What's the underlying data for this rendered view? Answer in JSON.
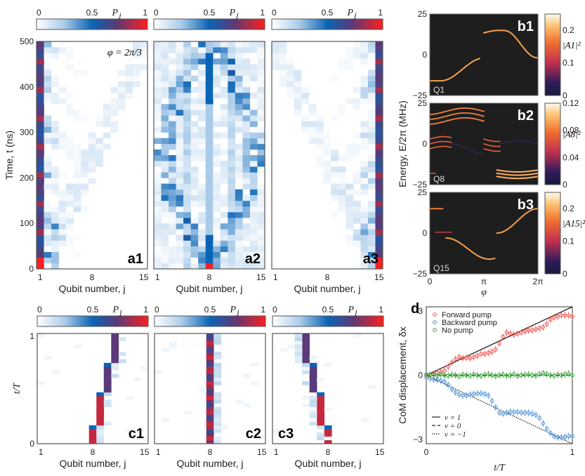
{
  "chart_data": [
    {
      "id": "a",
      "type": "heatmap",
      "colorbar": {
        "label": "P_j",
        "ticks": [
          "0",
          "0.5",
          "1"
        ],
        "range": [
          0,
          1
        ]
      },
      "ylabel": "Time, t (ns)",
      "xlabel": "Qubit number, j",
      "xticks": [
        "1",
        "8",
        "15"
      ],
      "yticks": [
        "0",
        "100",
        "200",
        "300",
        "400",
        "500"
      ],
      "ylim": [
        0,
        500
      ],
      "annotation": "φ = 2π/3",
      "panels": [
        {
          "label": "a1",
          "initial_qubit": 1,
          "description": "excitation stays localized at edge qubit 1"
        },
        {
          "label": "a2",
          "initial_qubit": 8,
          "description": "excitation spreads from center qubit 8 and refocuses"
        },
        {
          "label": "a3",
          "initial_qubit": 15,
          "description": "excitation stays localized at edge qubit 15"
        }
      ]
    },
    {
      "id": "b",
      "type": "heatmap",
      "xlabel": "φ",
      "xticks": [
        "0",
        "π",
        "2π"
      ],
      "ylabel": "Energy, E/2π (MHz)",
      "yticks": [
        "−25",
        "0",
        "25"
      ],
      "ylim": [
        -25,
        25
      ],
      "panels": [
        {
          "label": "b1",
          "qubit_label": "Q1",
          "colorbar_label": "|A1|²",
          "colorbar_ticks": [
            "0",
            "0.1",
            "0.2"
          ],
          "colorbar_max": 0.25
        },
        {
          "label": "b2",
          "qubit_label": "Q8",
          "colorbar_label": "|A8|²",
          "colorbar_ticks": [
            "0",
            "0.04",
            "0.08",
            "0.12"
          ],
          "colorbar_max": 0.12
        },
        {
          "label": "b3",
          "qubit_label": "Q15",
          "colorbar_label": "|A15|²",
          "colorbar_ticks": [
            "0",
            "0.1",
            "0.2"
          ],
          "colorbar_max": 0.25
        }
      ]
    },
    {
      "id": "c",
      "type": "heatmap",
      "colorbar": {
        "label": "P_j",
        "ticks": [
          "0",
          "0.5",
          "1"
        ],
        "range": [
          0,
          1
        ]
      },
      "ylabel": "t/T",
      "xlabel": "Qubit number, j",
      "xticks": [
        "1",
        "8",
        "15"
      ],
      "yticks": [
        "0",
        "1"
      ],
      "panels": [
        {
          "label": "c1",
          "path_qubits": [
            8,
            9,
            10,
            11
          ],
          "description": "forward pump: shifts right"
        },
        {
          "label": "c2",
          "path_qubits": [
            8
          ],
          "description": "no pump: stays at 8"
        },
        {
          "label": "c3",
          "path_qubits": [
            8,
            7,
            6,
            5
          ],
          "description": "backward pump: shifts left"
        }
      ]
    },
    {
      "id": "d",
      "type": "scatter",
      "label": "d",
      "xlabel": "t/T",
      "ylabel": "CoM displacement, δx",
      "xticks": [
        "0",
        "1"
      ],
      "yticks": [
        "−3",
        "0",
        "3"
      ],
      "xlim": [
        0,
        1
      ],
      "ylim": [
        -3.2,
        3.2
      ],
      "legend": [
        "Forward pump",
        "Backward pump",
        "No pump"
      ],
      "legend_lines": [
        "ν = 1",
        "ν = 0",
        "ν = −1"
      ],
      "legend_position": "top-left",
      "colors": {
        "forward": "#f0504a",
        "backward": "#4a90d9",
        "none": "#3aa83a"
      },
      "series": [
        {
          "name": "Forward pump",
          "x_points": 41,
          "values": [
            0,
            0.02,
            0.05,
            0.1,
            0.15,
            0.22,
            0.4,
            0.6,
            0.75,
            0.85,
            0.8,
            0.82,
            0.8,
            0.85,
            0.9,
            1.0,
            1.0,
            1.05,
            1.1,
            1.2,
            1.5,
            1.8,
            2.0,
            1.95,
            1.9,
            1.95,
            2.0,
            2.05,
            2.1,
            2.1,
            2.15,
            2.2,
            2.25,
            2.4,
            2.6,
            2.7,
            2.75,
            2.8,
            2.8,
            2.8,
            2.75
          ]
        },
        {
          "name": "Backward pump",
          "x_points": 41,
          "values": [
            -0.1,
            -0.15,
            -0.2,
            -0.22,
            -0.25,
            -0.3,
            -0.45,
            -0.65,
            -0.8,
            -0.9,
            -0.95,
            -0.95,
            -0.9,
            -0.88,
            -0.85,
            -0.85,
            -0.88,
            -0.95,
            -1.2,
            -1.5,
            -1.75,
            -1.8,
            -1.75,
            -1.72,
            -1.72,
            -1.72,
            -1.75,
            -1.75,
            -1.75,
            -1.8,
            -1.85,
            -2.0,
            -2.25,
            -2.5,
            -2.7,
            -2.85,
            -2.9,
            -2.9,
            -2.88,
            -2.85,
            -2.85
          ]
        },
        {
          "name": "No pump",
          "x_points": 41,
          "values": [
            0.05,
            0,
            0.02,
            -0.03,
            0.05,
            0.0,
            -0.02,
            0.02,
            0,
            -0.05,
            0.03,
            0,
            -0.02,
            0.04,
            0,
            -0.03,
            0.02,
            0.05,
            0,
            -0.04,
            0,
            0.03,
            -0.02,
            0,
            0.05,
            -0.03,
            0,
            0.02,
            0.04,
            0,
            -0.02,
            0.05,
            0.1,
            0.05,
            0,
            -0.02,
            0.03,
            0,
            0.05,
            0.08,
            0
          ]
        },
        {
          "name": "ν = 1",
          "type": "line",
          "from": [
            0,
            0
          ],
          "to": [
            1,
            3.2
          ]
        },
        {
          "name": "ν = 0",
          "type": "line",
          "from": [
            0,
            0
          ],
          "to": [
            1,
            0
          ]
        },
        {
          "name": "ν = −1",
          "type": "line",
          "from": [
            0,
            0
          ],
          "to": [
            1,
            -3.2
          ]
        }
      ]
    }
  ]
}
